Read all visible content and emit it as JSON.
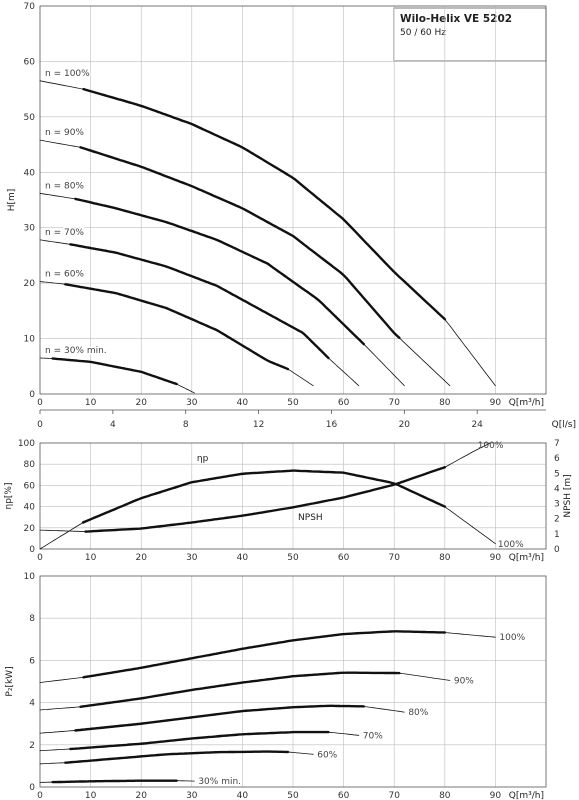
{
  "title_box": {
    "title": "Wilo-Helix VE 5202",
    "subtitle": "50 / 60 Hz"
  },
  "chart_data": [
    {
      "type": "line",
      "name": "head-curves",
      "xlabel": "Q[m³/h]",
      "x2label": "Q[l/s]",
      "ylabel": "H[m]",
      "xlim": [
        0,
        100
      ],
      "ylim": [
        0,
        70
      ],
      "x_ticks": [
        0,
        10,
        20,
        30,
        40,
        50,
        60,
        70,
        80,
        90
      ],
      "y_ticks": [
        0,
        10,
        20,
        30,
        40,
        50,
        60,
        70
      ],
      "x2_ticks": [
        0,
        4,
        8,
        12,
        16,
        20,
        24
      ],
      "grid": true,
      "series": [
        {
          "name": "n = 100%",
          "points": [
            [
              0,
              56.5
            ],
            [
              8.6,
              55
            ],
            [
              20,
              52
            ],
            [
              30,
              48.7
            ],
            [
              40,
              44.5
            ],
            [
              50,
              39
            ],
            [
              60,
              31.5
            ],
            [
              70,
              22
            ],
            [
              80,
              13.5
            ],
            [
              90,
              1.5
            ]
          ],
          "bold_range": [
            8.6,
            80
          ]
        },
        {
          "name": "n = 90%",
          "points": [
            [
              0,
              45.8
            ],
            [
              8,
              44.5
            ],
            [
              20,
              41
            ],
            [
              30,
              37.5
            ],
            [
              40,
              33.5
            ],
            [
              50,
              28.5
            ],
            [
              60,
              21.5
            ],
            [
              70,
              11
            ],
            [
              81,
              1.5
            ]
          ],
          "bold_range": [
            8,
            71
          ]
        },
        {
          "name": "n = 80%",
          "points": [
            [
              0,
              36.2
            ],
            [
              7,
              35.2
            ],
            [
              15,
              33.5
            ],
            [
              25,
              31
            ],
            [
              35,
              27.8
            ],
            [
              45,
              23.5
            ],
            [
              55,
              17
            ],
            [
              64,
              9
            ],
            [
              72,
              1.5
            ]
          ],
          "bold_range": [
            7,
            64
          ]
        },
        {
          "name": "n = 70%",
          "points": [
            [
              0,
              27.8
            ],
            [
              6,
              27
            ],
            [
              15,
              25.5
            ],
            [
              25,
              23
            ],
            [
              35,
              19.5
            ],
            [
              45,
              14.5
            ],
            [
              52,
              11
            ],
            [
              57,
              6.5
            ],
            [
              63,
              1.5
            ]
          ],
          "bold_range": [
            6,
            57
          ]
        },
        {
          "name": "n = 60%",
          "points": [
            [
              0,
              20.3
            ],
            [
              5,
              19.8
            ],
            [
              15,
              18.2
            ],
            [
              25,
              15.5
            ],
            [
              35,
              11.5
            ],
            [
              45,
              6
            ],
            [
              49,
              4.5
            ],
            [
              54,
              1.5
            ]
          ],
          "bold_range": [
            5,
            49
          ]
        },
        {
          "name": "n = 30% min.",
          "points": [
            [
              0,
              6.5
            ],
            [
              2.5,
              6.4
            ],
            [
              10,
              5.8
            ],
            [
              20,
              4
            ],
            [
              27,
              1.8
            ],
            [
              30.5,
              0.2
            ]
          ],
          "bold_range": [
            2.5,
            27
          ]
        }
      ]
    },
    {
      "type": "line",
      "name": "efficiency-npsh",
      "xlabel": "Q[m³/h]",
      "ylabel": "ηp[%]",
      "y2label": "NPSH [m]",
      "xlim": [
        0,
        100
      ],
      "ylim": [
        0,
        100
      ],
      "y2lim": [
        0,
        7
      ],
      "x_ticks": [
        0,
        10,
        20,
        30,
        40,
        50,
        60,
        70,
        80,
        90
      ],
      "y_ticks": [
        0,
        20,
        40,
        60,
        80,
        100
      ],
      "y2_ticks": [
        0,
        1,
        2,
        3,
        4,
        5,
        6,
        7
      ],
      "grid": true,
      "series": [
        {
          "name": "ηp",
          "axis": "left",
          "points": [
            [
              0,
              0
            ],
            [
              8.5,
              25
            ],
            [
              20,
              48
            ],
            [
              30,
              63
            ],
            [
              40,
              71
            ],
            [
              50,
              74
            ],
            [
              60,
              72
            ],
            [
              70,
              62
            ],
            [
              80,
              40
            ],
            [
              90,
              5
            ]
          ],
          "bold_range": [
            8.5,
            80
          ]
        },
        {
          "name": "NPSH",
          "axis": "right",
          "points": [
            [
              0,
              1.25
            ],
            [
              9,
              1.15
            ],
            [
              20,
              1.35
            ],
            [
              30,
              1.75
            ],
            [
              40,
              2.2
            ],
            [
              50,
              2.75
            ],
            [
              60,
              3.4
            ],
            [
              70,
              4.25
            ],
            [
              80,
              5.4
            ],
            [
              86,
              6.5
            ],
            [
              89,
              7
            ]
          ],
          "bold_range": [
            9,
            80
          ]
        }
      ],
      "annotations": [
        "100%",
        "100%"
      ]
    },
    {
      "type": "line",
      "name": "power-curves",
      "xlabel": "Q[m³/h]",
      "ylabel": "P₂[kW]",
      "xlim": [
        0,
        100
      ],
      "ylim": [
        0,
        10
      ],
      "x_ticks": [
        0,
        10,
        20,
        30,
        40,
        50,
        60,
        70,
        80,
        90
      ],
      "y_ticks": [
        0,
        2,
        4,
        6,
        8,
        10
      ],
      "grid": true,
      "series": [
        {
          "name": "100%",
          "points": [
            [
              0,
              4.95
            ],
            [
              8.6,
              5.2
            ],
            [
              20,
              5.65
            ],
            [
              30,
              6.1
            ],
            [
              40,
              6.55
            ],
            [
              50,
              6.95
            ],
            [
              60,
              7.25
            ],
            [
              70,
              7.38
            ],
            [
              80,
              7.32
            ],
            [
              90,
              7.1
            ]
          ],
          "bold_range": [
            8.6,
            80
          ]
        },
        {
          "name": "90%",
          "points": [
            [
              0,
              3.65
            ],
            [
              8,
              3.8
            ],
            [
              20,
              4.2
            ],
            [
              30,
              4.6
            ],
            [
              40,
              4.95
            ],
            [
              50,
              5.25
            ],
            [
              60,
              5.42
            ],
            [
              71,
              5.4
            ],
            [
              81,
              5.05
            ]
          ],
          "bold_range": [
            8,
            71
          ]
        },
        {
          "name": "80%",
          "points": [
            [
              0,
              2.55
            ],
            [
              7,
              2.68
            ],
            [
              20,
              3.0
            ],
            [
              30,
              3.3
            ],
            [
              40,
              3.6
            ],
            [
              50,
              3.78
            ],
            [
              57,
              3.85
            ],
            [
              64,
              3.82
            ],
            [
              72,
              3.55
            ]
          ],
          "bold_range": [
            7,
            64
          ]
        },
        {
          "name": "70%",
          "points": [
            [
              0,
              1.72
            ],
            [
              6,
              1.8
            ],
            [
              20,
              2.05
            ],
            [
              30,
              2.3
            ],
            [
              40,
              2.5
            ],
            [
              50,
              2.6
            ],
            [
              57,
              2.6
            ],
            [
              63,
              2.45
            ]
          ],
          "bold_range": [
            6,
            57
          ]
        },
        {
          "name": "60%",
          "points": [
            [
              0,
              1.1
            ],
            [
              5,
              1.15
            ],
            [
              15,
              1.35
            ],
            [
              25,
              1.55
            ],
            [
              35,
              1.65
            ],
            [
              45,
              1.68
            ],
            [
              49,
              1.66
            ],
            [
              54,
              1.55
            ]
          ],
          "bold_range": [
            5,
            49
          ]
        },
        {
          "name": "30% min.",
          "points": [
            [
              0,
              0.22
            ],
            [
              2.5,
              0.23
            ],
            [
              10,
              0.27
            ],
            [
              20,
              0.3
            ],
            [
              27,
              0.3
            ],
            [
              30.5,
              0.28
            ]
          ],
          "bold_range": [
            2.5,
            27
          ]
        }
      ]
    }
  ]
}
